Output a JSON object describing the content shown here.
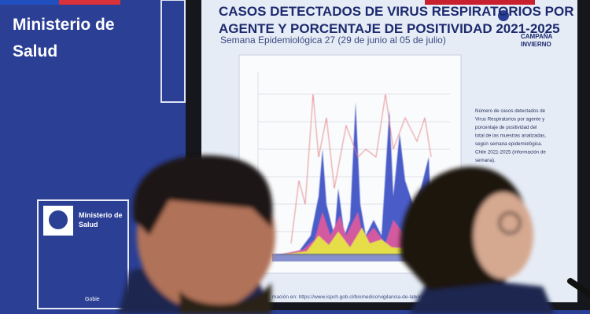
{
  "wall": {
    "logo_line1": "Ministerio de",
    "logo_line2": "Salud",
    "sign_line1": "Ministerio de",
    "sign_line2": "Salud",
    "sign_footer": "Gobie"
  },
  "screen": {
    "title_line1": "CASOS DETECTADOS DE VIRUS RESPIRATORIOS POR",
    "title_line2": "AGENTE Y PORCENTAJE DE POSITIVIDAD 2021-2025",
    "subtitle": "Semana Epidemiológica 27 (29 de junio al 05 de julio)",
    "campaign_line1": "CAMPAÑA",
    "campaign_line2": "INVIERNO",
    "note": [
      "Número de casos detectados de",
      "Virus Respiratorios por agente y",
      "porcentaje de positividad del",
      "total de las muestras analizadas,",
      "según semana epidemiológica.",
      "Chile 2021-2025 (información de",
      "semana)."
    ],
    "source": "mación en: https://www.ispch.gob.cl/biomedico/vigilancia-de-laborat"
  }
}
